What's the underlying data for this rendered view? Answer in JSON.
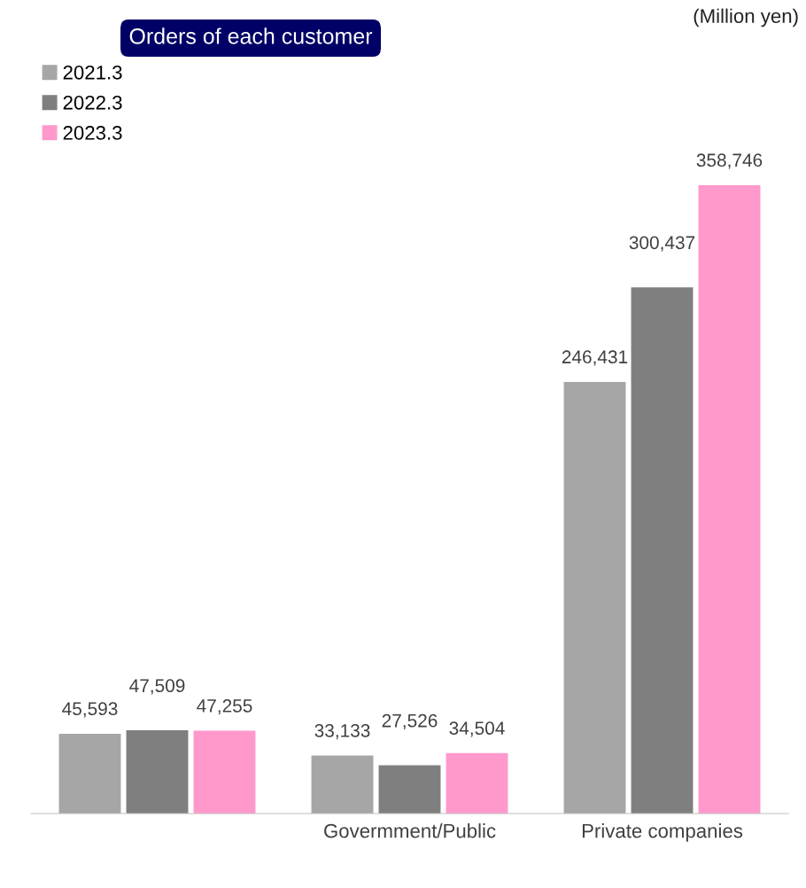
{
  "chart_data": {
    "type": "bar",
    "title": "Orders of each customer",
    "annotations": [
      "(Million yen)"
    ],
    "categories": [
      null,
      "Govermment/Public",
      "Private companies"
    ],
    "series": [
      {
        "name": "2021.3",
        "color": "#a6a6a6",
        "values": [
          45593,
          33133,
          246431
        ],
        "value_labels": [
          "45,593",
          "33,133",
          "246,431"
        ]
      },
      {
        "name": "2022.3",
        "color": "#7f7f7f",
        "values": [
          47509,
          27526,
          300437
        ],
        "value_labels": [
          "47,509",
          "27,526",
          "300,437"
        ]
      },
      {
        "name": "2023.3",
        "color": "#ff99cc",
        "values": [
          47255,
          34504,
          358746
        ],
        "value_labels": [
          "47,255",
          "34,504",
          "358,746"
        ]
      }
    ],
    "legend": "top left",
    "grid": false
  }
}
